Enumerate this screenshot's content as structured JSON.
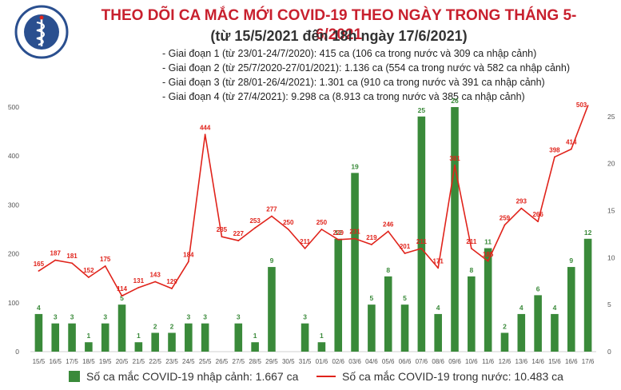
{
  "title": "THEO DÕI CA MẮC MỚI COVID-19 THEO NGÀY TRONG THÁNG 5-6/2021",
  "subtitle": "(từ 15/5/2021 đến 18h ngày 17/6/2021)",
  "logo": {
    "top_text": "BỘ Y TẾ",
    "bottom_text": "MINISTRY OF HEALTH"
  },
  "phases": [
    "Giai đoạn 1 (từ 23/01-24/7/2020): 415 ca (106 ca trong nước và 309 ca nhập cảnh)",
    "Giai đoạn 2 (từ 25/7/2020-27/01/2021): 1.136 ca (554 ca trong nước và 582 ca nhập cảnh)",
    "Giai đoạn 3 (từ 28/01-26/4/2021): 1.301 ca (910 ca trong nước và 391 ca nhập cảnh)",
    "Giai đoạn 4 (từ 27/4/2021): 9.298 ca (8.913 ca trong nước và 385 ca nhập cảnh)"
  ],
  "legend": {
    "bar_label": "Số ca mắc COVID-19 nhập cảnh: 1.667 ca",
    "line_label": "Số ca mắc COVID-19 trong nước: 10.483 ca"
  },
  "colors": {
    "title": "#c8202e",
    "bar": "#3a8a3a",
    "line": "#e0231b",
    "axis_text": "#555555"
  },
  "chart_data": {
    "type": "bar+line",
    "categories": [
      "15/5",
      "16/5",
      "17/5",
      "18/5",
      "19/5",
      "20/5",
      "21/5",
      "22/5",
      "23/5",
      "24/5",
      "25/5",
      "26/5",
      "27/5",
      "28/5",
      "29/5",
      "30/5",
      "31/5",
      "01/6",
      "02/6",
      "03/6",
      "04/6",
      "05/6",
      "06/6",
      "07/6",
      "08/6",
      "09/6",
      "10/6",
      "11/6",
      "12/6",
      "13/6",
      "14/6",
      "15/6",
      "16/6",
      "17/6"
    ],
    "series": [
      {
        "name": "Số ca mắc COVID-19 nhập cảnh",
        "type": "bar",
        "axis": "right",
        "values": [
          4,
          3,
          3,
          1,
          3,
          5,
          1,
          2,
          2,
          3,
          3,
          0,
          3,
          1,
          9,
          0,
          3,
          1,
          12,
          19,
          5,
          8,
          5,
          25,
          4,
          26,
          8,
          11,
          2,
          4,
          6,
          4,
          9,
          12
        ],
        "labels": [
          "4",
          "3",
          "3",
          "1",
          "3",
          "5",
          "1",
          "2",
          "2",
          "3",
          "3",
          "",
          "3",
          "1",
          "9",
          "",
          "3",
          "1",
          "12",
          "19",
          "5",
          "8",
          "5",
          "25",
          "4",
          "26",
          "8",
          "11",
          "2",
          "4",
          "6",
          "4",
          "9",
          "12"
        ]
      },
      {
        "name": "Số ca mắc COVID-19 trong nước",
        "type": "line",
        "axis": "left",
        "values": [
          165,
          187,
          181,
          152,
          175,
          114,
          131,
          143,
          129,
          184,
          444,
          235,
          227,
          253,
          277,
          250,
          211,
          250,
          229,
          231,
          219,
          246,
          201,
          211,
          171,
          381,
          211,
          185,
          259,
          293,
          266,
          398,
          414,
          503
        ],
        "labels": [
          "165",
          "187",
          "181",
          "152",
          "175",
          "114",
          "131",
          "143",
          "129",
          "184",
          "444",
          "235",
          "227",
          "253",
          "277",
          "250",
          "211",
          "250",
          "229",
          "231",
          "219",
          "246",
          "201",
          "211",
          "171",
          "381",
          "211",
          "185",
          "259",
          "293",
          "266",
          "398",
          "414",
          "503"
        ]
      }
    ],
    "y_left": {
      "min": 0,
      "max": 500,
      "ticks": [
        "0",
        "100",
        "200",
        "300",
        "400",
        "500"
      ]
    },
    "y_right": {
      "min": 0,
      "max": 26,
      "ticks": [
        "0",
        "5",
        "10",
        "15",
        "20",
        "25"
      ]
    },
    "legend_position": "bottom",
    "grid": false
  }
}
